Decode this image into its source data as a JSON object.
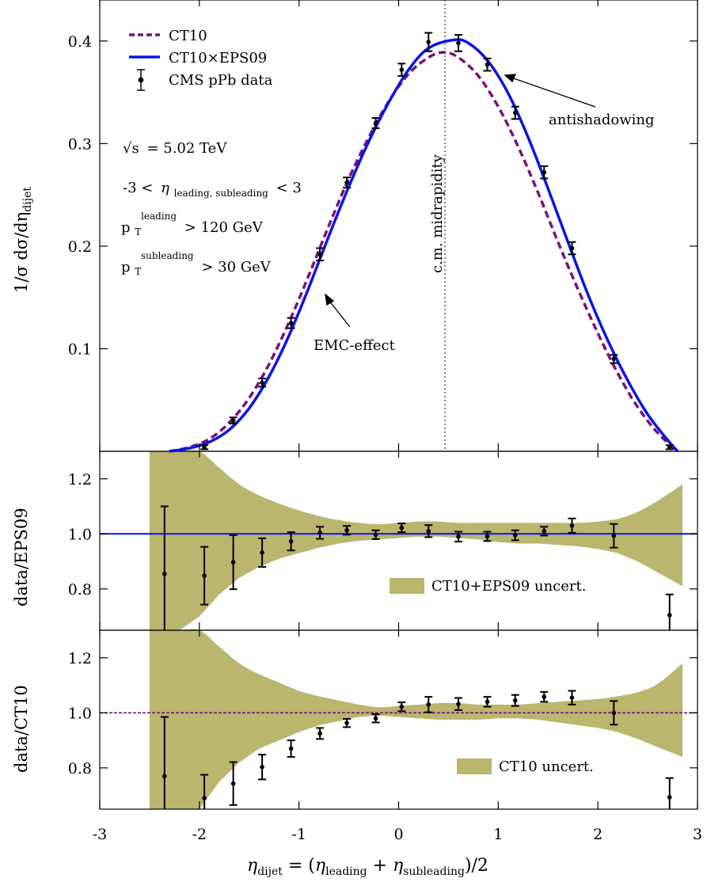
{
  "chart_data": [
    {
      "type": "line",
      "panel": "main",
      "ylabel": "1/σ dσ/dη",
      "ylabel_sub": "dijet",
      "xlim": [
        -3,
        3
      ],
      "ylim": [
        0,
        0.44
      ],
      "yticks": [
        0.1,
        0.2,
        0.3,
        0.4
      ],
      "ytick_labels": [
        "0.1",
        "0.2",
        "0.3",
        "0.4"
      ],
      "legend_position": "top-left",
      "legend": {
        "ct10": "CT10",
        "eps09": "CT10×EPS09",
        "data": "CMS pPb data"
      },
      "series": [
        {
          "name": "CT10",
          "style": "dashed",
          "color": "#7b0f7a",
          "x": [
            -2.3,
            -2.1,
            -1.9,
            -1.7,
            -1.5,
            -1.3,
            -1.1,
            -0.9,
            -0.7,
            -0.5,
            -0.3,
            -0.1,
            0.1,
            0.3,
            0.45,
            0.6,
            0.8,
            1.0,
            1.2,
            1.4,
            1.6,
            1.8,
            2.0,
            2.2,
            2.4,
            2.6,
            2.8
          ],
          "y": [
            0.0,
            0.004,
            0.012,
            0.028,
            0.052,
            0.085,
            0.126,
            0.172,
            0.22,
            0.266,
            0.306,
            0.341,
            0.368,
            0.384,
            0.389,
            0.384,
            0.366,
            0.336,
            0.297,
            0.252,
            0.204,
            0.158,
            0.115,
            0.076,
            0.043,
            0.018,
            0.0
          ]
        },
        {
          "name": "CT10×EPS09",
          "style": "solid",
          "color": "#0a14e6",
          "x": [
            -2.3,
            -2.1,
            -1.9,
            -1.7,
            -1.5,
            -1.3,
            -1.1,
            -0.9,
            -0.7,
            -0.5,
            -0.3,
            -0.1,
            0.1,
            0.3,
            0.55,
            0.7,
            0.9,
            1.1,
            1.3,
            1.5,
            1.7,
            1.9,
            2.1,
            2.3,
            2.5,
            2.7,
            2.8
          ],
          "y": [
            0.0,
            0.003,
            0.009,
            0.021,
            0.042,
            0.073,
            0.113,
            0.16,
            0.21,
            0.258,
            0.302,
            0.34,
            0.372,
            0.393,
            0.401,
            0.398,
            0.38,
            0.349,
            0.306,
            0.256,
            0.204,
            0.153,
            0.108,
            0.069,
            0.036,
            0.011,
            0.0
          ]
        },
        {
          "name": "CMS pPb data",
          "style": "points",
          "color": "#000000",
          "x": [
            -1.95,
            -1.66,
            -1.37,
            -1.08,
            -0.79,
            -0.52,
            -0.23,
            0.03,
            0.3,
            0.6,
            0.89,
            1.17,
            1.46,
            1.74,
            2.16,
            2.72
          ],
          "y": [
            0.004,
            0.03,
            0.067,
            0.125,
            0.192,
            0.262,
            0.32,
            0.372,
            0.399,
            0.398,
            0.377,
            0.33,
            0.272,
            0.198,
            0.09,
            0.004
          ],
          "err": [
            0.002,
            0.003,
            0.004,
            0.005,
            0.006,
            0.005,
            0.005,
            0.006,
            0.009,
            0.008,
            0.006,
            0.006,
            0.006,
            0.006,
            0.004,
            0.002
          ]
        }
      ],
      "annotations": {
        "midrapidity": "c.m. midrapidity",
        "midrapidity_x": 0.465,
        "antishadowing": "antishadowing",
        "emc": "EMC-effect",
        "sqrts_prefix": "√s",
        "sqrts_value": "= 5.02 TeV",
        "eta_cut_left": "-3 <",
        "eta_symbol": "η",
        "eta_cut_sub": "leading, subleading",
        "eta_cut_right": "< 3",
        "pt_symbol": "p",
        "pt_sub": "T",
        "pt_lead_sup": "leading",
        "pt_lead_cut": "> 120 GeV",
        "pt_sublead_sup": "subleading",
        "pt_sublead_cut": "> 30 GeV"
      }
    },
    {
      "type": "area",
      "panel": "ratio_eps09",
      "ylabel": "data/EPS09",
      "ylim": [
        0.65,
        1.3
      ],
      "yticks": [
        0.8,
        1.0,
        1.2
      ],
      "ytick_labels": [
        "0.8",
        "1.0",
        "1.2"
      ],
      "reference_line": 1.0,
      "reference_color": "#0a14e6",
      "band_color": "#b9b66e",
      "band_label": "CT10+EPS09 uncert.",
      "band": {
        "x": [
          -2.5,
          -2.2,
          -2.0,
          -1.8,
          -1.6,
          -1.4,
          -1.2,
          -1.0,
          -0.8,
          -0.6,
          -0.4,
          -0.2,
          0.0,
          0.2,
          0.4,
          0.6,
          0.8,
          1.0,
          1.2,
          1.4,
          1.6,
          1.8,
          2.0,
          2.2,
          2.4,
          2.6,
          2.85
        ],
        "upper": [
          1.3,
          1.3,
          1.3,
          1.24,
          1.18,
          1.14,
          1.11,
          1.085,
          1.065,
          1.05,
          1.04,
          1.035,
          1.04,
          1.045,
          1.045,
          1.04,
          1.04,
          1.04,
          1.04,
          1.04,
          1.04,
          1.04,
          1.045,
          1.055,
          1.08,
          1.12,
          1.18
        ],
        "lower": [
          0.65,
          0.65,
          0.7,
          0.78,
          0.84,
          0.88,
          0.91,
          0.93,
          0.95,
          0.965,
          0.975,
          0.98,
          0.985,
          0.99,
          0.99,
          0.985,
          0.98,
          0.97,
          0.965,
          0.965,
          0.96,
          0.955,
          0.945,
          0.93,
          0.9,
          0.86,
          0.81
        ]
      },
      "points": {
        "x": [
          -2.35,
          -1.95,
          -1.66,
          -1.37,
          -1.08,
          -0.79,
          -0.52,
          -0.23,
          0.03,
          0.3,
          0.6,
          0.89,
          1.17,
          1.46,
          1.74,
          2.16,
          2.72
        ],
        "y": [
          0.855,
          0.848,
          0.897,
          0.932,
          0.973,
          1.004,
          1.013,
          0.997,
          1.022,
          1.01,
          0.99,
          0.991,
          0.995,
          1.01,
          1.03,
          0.993,
          0.705
        ],
        "err": [
          0.245,
          0.105,
          0.098,
          0.052,
          0.033,
          0.022,
          0.016,
          0.016,
          0.016,
          0.022,
          0.018,
          0.017,
          0.018,
          0.016,
          0.026,
          0.043,
          0.075
        ]
      }
    },
    {
      "type": "area",
      "panel": "ratio_ct10",
      "ylabel": "data/CT10",
      "xlabel_eta": "η",
      "xlabel_sub": "dijet",
      "xlabel_eq": " = (",
      "xlabel_lead_sub": "leading",
      "xlabel_plus": " + ",
      "xlabel_sublead_sub": "subleading",
      "xlabel_end": ")/2",
      "xlim": [
        -3,
        3
      ],
      "xticks": [
        -3,
        -2,
        -1,
        0,
        1,
        2,
        3
      ],
      "xtick_labels": [
        "-3",
        "-2",
        "-1",
        "0",
        "1",
        "2",
        "3"
      ],
      "ylim": [
        0.65,
        1.3
      ],
      "yticks": [
        0.8,
        1.0,
        1.2
      ],
      "ytick_labels": [
        "0.8",
        "1.0",
        "1.2"
      ],
      "reference_line": 1.0,
      "reference_color": "#7b0f7a",
      "band_color": "#b9b66e",
      "band_label": "CT10 uncert.",
      "band": {
        "x": [
          -2.5,
          -2.2,
          -2.0,
          -1.8,
          -1.6,
          -1.4,
          -1.2,
          -1.0,
          -0.8,
          -0.6,
          -0.4,
          -0.2,
          0.0,
          0.2,
          0.4,
          0.6,
          0.8,
          1.0,
          1.2,
          1.4,
          1.6,
          1.8,
          2.0,
          2.2,
          2.4,
          2.6,
          2.85
        ],
        "upper": [
          1.3,
          1.3,
          1.3,
          1.24,
          1.18,
          1.14,
          1.11,
          1.08,
          1.06,
          1.045,
          1.03,
          1.02,
          1.025,
          1.03,
          1.035,
          1.035,
          1.03,
          1.03,
          1.03,
          1.035,
          1.04,
          1.045,
          1.05,
          1.06,
          1.075,
          1.105,
          1.18
        ],
        "lower": [
          0.65,
          0.65,
          0.65,
          0.75,
          0.82,
          0.87,
          0.9,
          0.93,
          0.955,
          0.97,
          0.985,
          0.99,
          0.985,
          0.98,
          0.975,
          0.975,
          0.975,
          0.98,
          0.98,
          0.975,
          0.965,
          0.955,
          0.945,
          0.93,
          0.905,
          0.875,
          0.84
        ]
      },
      "points": {
        "x": [
          -2.35,
          -1.95,
          -1.66,
          -1.37,
          -1.08,
          -0.79,
          -0.52,
          -0.23,
          0.03,
          0.3,
          0.6,
          0.89,
          1.17,
          1.46,
          1.74,
          2.16,
          2.72
        ],
        "y": [
          0.77,
          0.69,
          0.743,
          0.803,
          0.87,
          0.925,
          0.963,
          0.98,
          1.022,
          1.03,
          1.032,
          1.04,
          1.045,
          1.058,
          1.055,
          1.0,
          0.693
        ],
        "err": [
          0.215,
          0.085,
          0.078,
          0.045,
          0.03,
          0.02,
          0.015,
          0.015,
          0.016,
          0.028,
          0.022,
          0.018,
          0.02,
          0.018,
          0.025,
          0.043,
          0.07
        ]
      }
    }
  ]
}
